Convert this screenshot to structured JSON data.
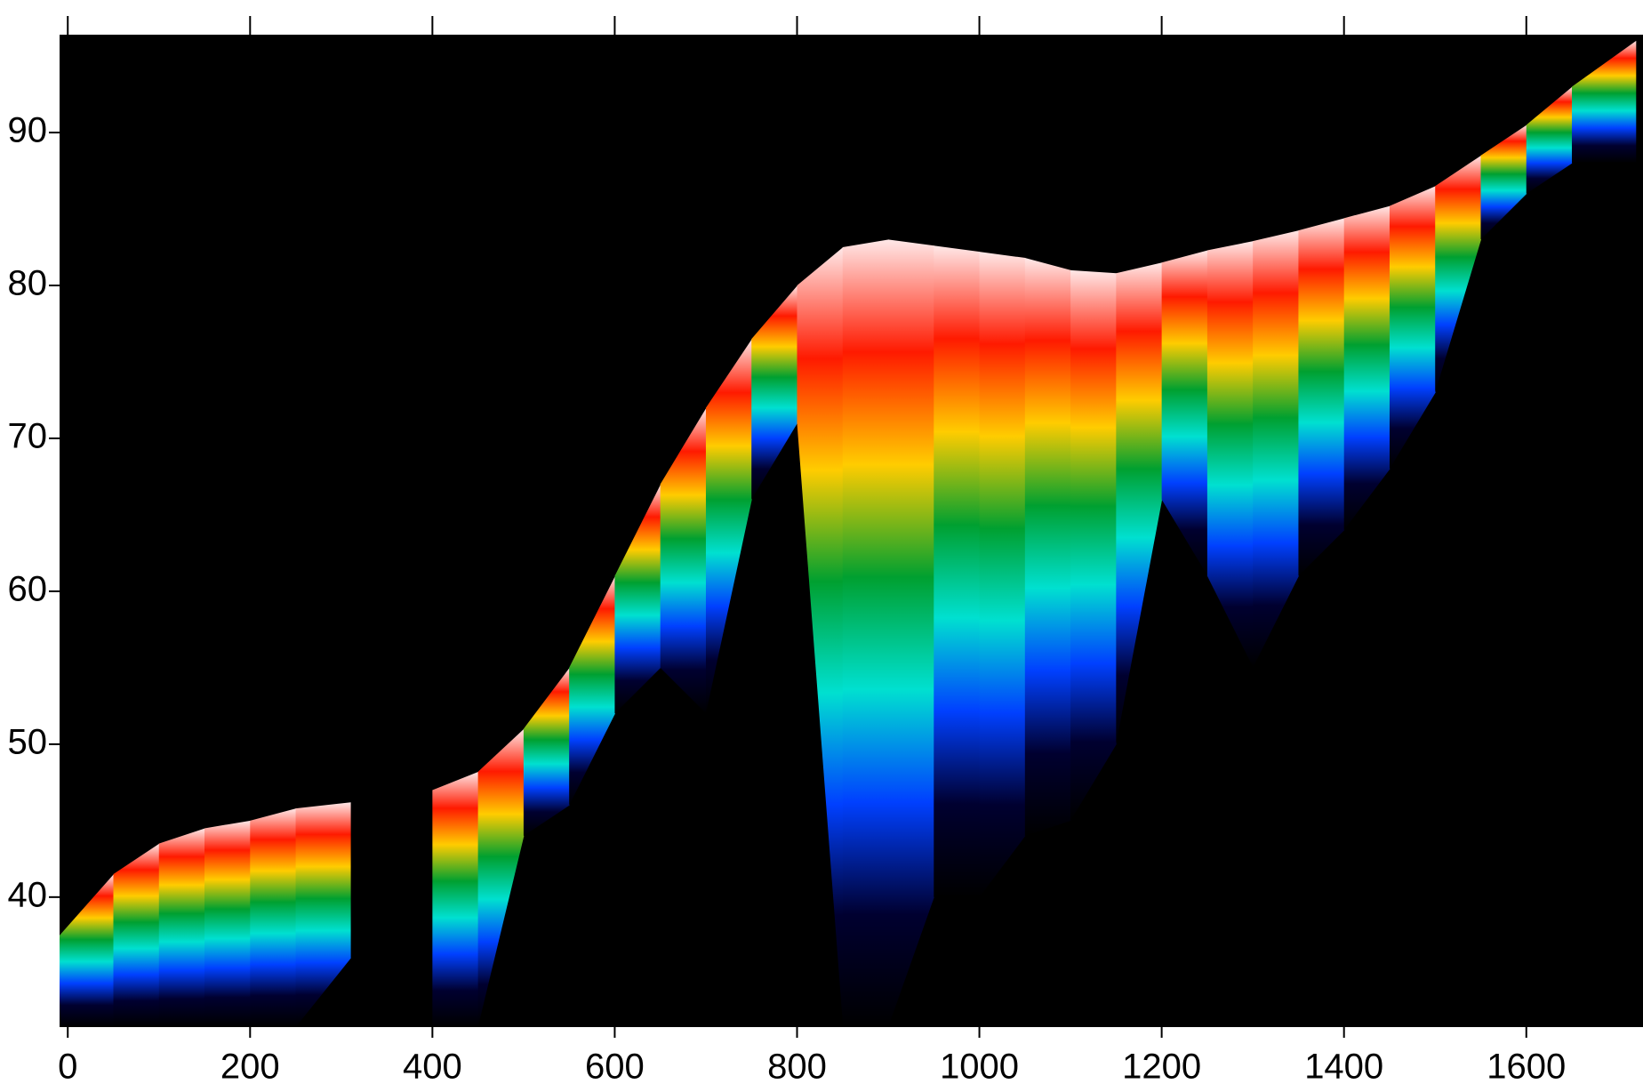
{
  "chart_data": {
    "type": "band",
    "x": [
      -9,
      50,
      100,
      150,
      200,
      250,
      310,
      355,
      400,
      450,
      500,
      550,
      600,
      650,
      700,
      750,
      800,
      850,
      900,
      950,
      1000,
      1050,
      1100,
      1150,
      1200,
      1250,
      1300,
      1350,
      1400,
      1450,
      1500,
      1550,
      1600,
      1650,
      1720
    ],
    "upper": [
      37.5,
      41.5,
      43.5,
      44.5,
      45,
      45.8,
      46.2,
      null,
      47,
      48.2,
      51,
      55,
      61,
      67,
      72,
      76.5,
      80,
      82.5,
      83,
      82.6,
      82.2,
      81.8,
      81,
      80.8,
      81.5,
      82.3,
      82.9,
      83.6,
      84.4,
      85.2,
      86.5,
      88.5,
      90.5,
      93,
      96
    ],
    "lower": [
      31.5,
      31.5,
      31.5,
      31.5,
      31.5,
      31.5,
      36,
      null,
      31.5,
      31.5,
      44,
      46,
      52,
      55,
      52,
      66,
      71,
      31.5,
      31.5,
      40,
      40,
      44,
      45,
      50,
      66,
      61,
      55,
      61,
      64,
      68,
      73,
      83,
      86,
      88,
      88
    ],
    "colormap": [
      "#ffe8e8",
      "#ff1a00",
      "#ffcc00",
      "#00a030",
      "#00e0d0",
      "#0040ff",
      "#000030",
      "#000000"
    ],
    "background": "#000000",
    "xlim": [
      -9,
      1728
    ],
    "ylim": [
      31.5,
      96.4
    ],
    "xticks": [
      0,
      200,
      400,
      600,
      800,
      1000,
      1200,
      1400,
      1600
    ],
    "yticks": [
      40,
      50,
      60,
      70,
      80,
      90
    ]
  }
}
